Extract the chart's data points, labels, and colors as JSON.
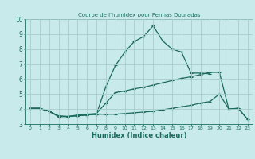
{
  "title": "Courbe de l'humidex pour Penhas Douradas",
  "xlabel": "Humidex (Indice chaleur)",
  "background_color": "#c8eaea",
  "grid_color": "#a8cccc",
  "line_color": "#1a6b5a",
  "xlim": [
    -0.5,
    23.5
  ],
  "ylim": [
    3,
    10
  ],
  "xticks": [
    0,
    1,
    2,
    3,
    4,
    5,
    6,
    7,
    8,
    9,
    10,
    11,
    12,
    13,
    14,
    15,
    16,
    17,
    18,
    19,
    20,
    21,
    22,
    23
  ],
  "yticks": [
    3,
    4,
    5,
    6,
    7,
    8,
    9,
    10
  ],
  "line1_x": [
    0,
    1,
    2,
    3,
    4,
    5,
    6,
    7,
    8,
    9,
    10,
    11,
    12,
    13,
    14,
    15,
    16,
    17,
    18,
    19,
    20,
    21,
    22,
    23
  ],
  "line1_y": [
    4.05,
    4.05,
    3.85,
    3.55,
    3.5,
    3.6,
    3.65,
    3.7,
    4.4,
    5.1,
    5.2,
    5.35,
    5.45,
    5.6,
    5.75,
    5.9,
    6.05,
    6.15,
    6.3,
    6.45,
    6.45,
    4.0,
    4.05,
    3.3
  ],
  "line2_x": [
    0,
    1,
    2,
    3,
    4,
    5,
    6,
    7,
    8,
    9,
    10,
    11,
    12,
    13,
    14,
    15,
    16,
    17,
    18,
    19,
    20,
    21,
    22,
    23
  ],
  "line2_y": [
    4.05,
    4.05,
    3.85,
    3.5,
    3.5,
    3.55,
    3.6,
    3.65,
    3.65,
    3.65,
    3.7,
    3.75,
    3.8,
    3.85,
    3.95,
    4.05,
    4.15,
    4.25,
    4.4,
    4.5,
    5.0,
    4.0,
    4.05,
    3.3
  ],
  "line3_x": [
    0,
    1,
    2,
    3,
    4,
    5,
    6,
    7,
    8,
    9,
    10,
    11,
    12,
    13,
    14,
    15,
    16,
    17,
    18,
    19
  ],
  "line3_y": [
    4.05,
    4.05,
    3.85,
    3.5,
    3.5,
    3.55,
    3.6,
    3.65,
    5.5,
    6.9,
    7.8,
    8.5,
    8.85,
    9.55,
    8.55,
    8.0,
    7.8,
    6.4,
    6.4,
    6.35
  ]
}
